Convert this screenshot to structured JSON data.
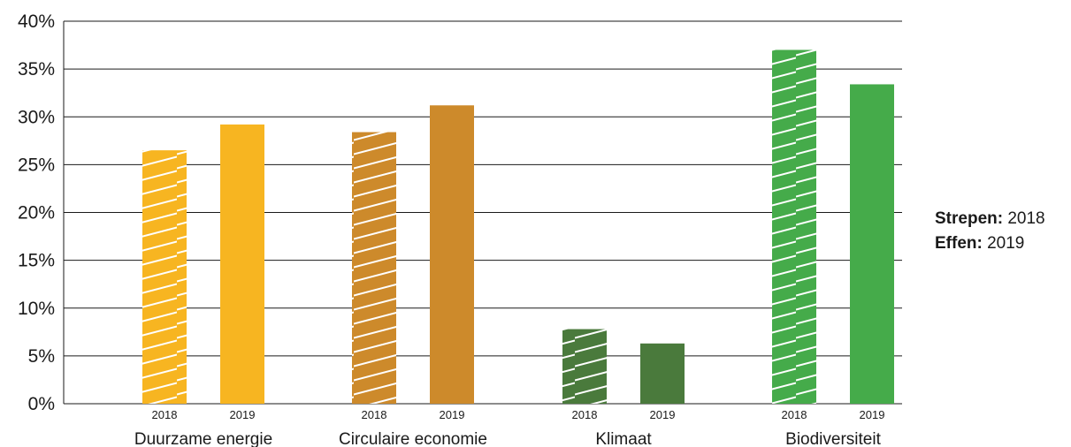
{
  "chart_data": {
    "type": "bar",
    "ylim": [
      0,
      40
    ],
    "y_ticks": [
      "0%",
      "5%",
      "10%",
      "15%",
      "20%",
      "25%",
      "30%",
      "35%",
      "40%"
    ],
    "y_tick_values": [
      0,
      5,
      10,
      15,
      20,
      25,
      30,
      35,
      40
    ],
    "grid": true,
    "categories": [
      "Duurzame energie",
      "Circulaire economie",
      "Klimaat",
      "Biodiversiteit"
    ],
    "series": [
      {
        "name": "2018",
        "pattern": "striped",
        "values": [
          26.5,
          28.4,
          7.8,
          37.0
        ]
      },
      {
        "name": "2019",
        "pattern": "solid",
        "values": [
          29.2,
          31.2,
          6.3,
          33.4
        ]
      }
    ],
    "colors": [
      "#f7b521",
      "#cd8a2b",
      "#4a7a3c",
      "#45ab4a"
    ]
  },
  "legend": {
    "striped_key": "Strepen:",
    "striped_value": "2018",
    "solid_key": "Effen:",
    "solid_value": "2019"
  }
}
